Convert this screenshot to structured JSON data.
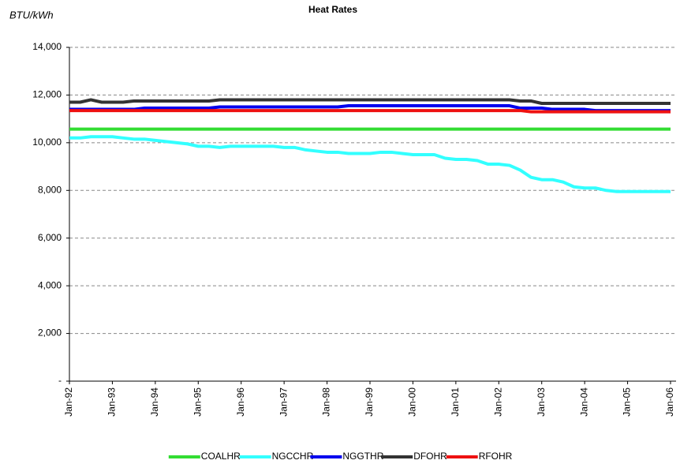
{
  "chart_data": {
    "type": "line",
    "title": "Heat Rates",
    "y_label": "BTU/kWh",
    "categories": [
      "Jan-92",
      null,
      null,
      null,
      "Jan-93",
      null,
      null,
      null,
      "Jan-94",
      null,
      null,
      null,
      "Jan-95",
      null,
      null,
      null,
      "Jan-96",
      null,
      null,
      null,
      "Jan-97",
      null,
      null,
      null,
      "Jan-98",
      null,
      null,
      null,
      "Jan-99",
      null,
      null,
      null,
      "Jan-00",
      null,
      null,
      null,
      "Jan-01",
      null,
      null,
      null,
      "Jan-02",
      null,
      null,
      null,
      "Jan-03",
      null,
      null,
      null,
      "Jan-04",
      null,
      null,
      null,
      "Jan-05",
      null,
      null,
      null,
      "Jan-06"
    ],
    "series": [
      {
        "name": "COALHR",
        "color": "#33dd33",
        "values": [
          10570,
          10570,
          10570,
          10570,
          10570,
          10570,
          10570,
          10570,
          10570,
          10570,
          10570,
          10570,
          10570,
          10570,
          10570,
          10570,
          10570,
          10570,
          10570,
          10570,
          10570,
          10570,
          10570,
          10570,
          10570,
          10570,
          10570,
          10570,
          10570,
          10570,
          10570,
          10570,
          10570,
          10570,
          10570,
          10570,
          10570,
          10570,
          10570,
          10570,
          10570,
          10570,
          10570,
          10570,
          10570,
          10570,
          10570,
          10570,
          10570,
          10570,
          10570,
          10570,
          10570,
          10570,
          10570,
          10570,
          10570
        ]
      },
      {
        "name": "NGCCHR",
        "color": "#33ffff",
        "values": [
          10200,
          10200,
          10250,
          10250,
          10250,
          10200,
          10150,
          10150,
          10100,
          10050,
          10000,
          9950,
          9850,
          9850,
          9800,
          9850,
          9850,
          9850,
          9850,
          9850,
          9800,
          9800,
          9700,
          9650,
          9600,
          9600,
          9550,
          9550,
          9550,
          9600,
          9600,
          9550,
          9500,
          9500,
          9500,
          9350,
          9300,
          9300,
          9250,
          9100,
          9100,
          9050,
          8850,
          8550,
          8450,
          8450,
          8350,
          8150,
          8100,
          8100,
          8000,
          7950,
          7950,
          7950,
          7950,
          7950,
          7950
        ]
      },
      {
        "name": "NGGTHR",
        "color": "#0000ee",
        "values": [
          11400,
          11400,
          11400,
          11400,
          11400,
          11400,
          11400,
          11450,
          11450,
          11450,
          11450,
          11450,
          11450,
          11450,
          11500,
          11500,
          11500,
          11500,
          11500,
          11500,
          11500,
          11500,
          11500,
          11500,
          11500,
          11500,
          11550,
          11550,
          11550,
          11550,
          11550,
          11550,
          11550,
          11550,
          11550,
          11550,
          11550,
          11550,
          11550,
          11550,
          11550,
          11550,
          11450,
          11450,
          11450,
          11400,
          11400,
          11400,
          11400,
          11350,
          11350,
          11350,
          11350,
          11350,
          11350,
          11350,
          11350
        ]
      },
      {
        "name": "DFOHR",
        "color": "#333333",
        "values": [
          11700,
          11700,
          11800,
          11700,
          11700,
          11700,
          11750,
          11750,
          11750,
          11750,
          11750,
          11750,
          11750,
          11750,
          11800,
          11800,
          11800,
          11800,
          11800,
          11800,
          11800,
          11800,
          11800,
          11800,
          11800,
          11800,
          11800,
          11800,
          11800,
          11800,
          11800,
          11800,
          11800,
          11800,
          11800,
          11800,
          11800,
          11800,
          11800,
          11800,
          11800,
          11800,
          11750,
          11750,
          11650,
          11650,
          11650,
          11650,
          11650,
          11650,
          11650,
          11650,
          11650,
          11650,
          11650,
          11650,
          11650
        ]
      },
      {
        "name": "RFOHR",
        "color": "#ee1111",
        "values": [
          11350,
          11350,
          11350,
          11350,
          11350,
          11350,
          11350,
          11350,
          11350,
          11350,
          11350,
          11350,
          11350,
          11350,
          11350,
          11350,
          11350,
          11350,
          11350,
          11350,
          11350,
          11350,
          11350,
          11350,
          11350,
          11350,
          11350,
          11350,
          11350,
          11350,
          11350,
          11350,
          11350,
          11350,
          11350,
          11350,
          11350,
          11350,
          11350,
          11350,
          11350,
          11350,
          11350,
          11300,
          11300,
          11300,
          11300,
          11300,
          11300,
          11300,
          11300,
          11300,
          11300,
          11300,
          11300,
          11300,
          11300
        ]
      }
    ],
    "ylim": [
      0,
      14000
    ],
    "yticks": [
      {
        "value": 0,
        "label": "-"
      },
      {
        "value": 2000,
        "label": "2,000"
      },
      {
        "value": 4000,
        "label": "4,000"
      },
      {
        "value": 6000,
        "label": "6,000"
      },
      {
        "value": 8000,
        "label": "8,000"
      },
      {
        "value": 10000,
        "label": "10,000"
      },
      {
        "value": 12000,
        "label": "12,000"
      },
      {
        "value": 14000,
        "label": "14,000"
      }
    ],
    "grid": true,
    "legend": "bottom"
  }
}
